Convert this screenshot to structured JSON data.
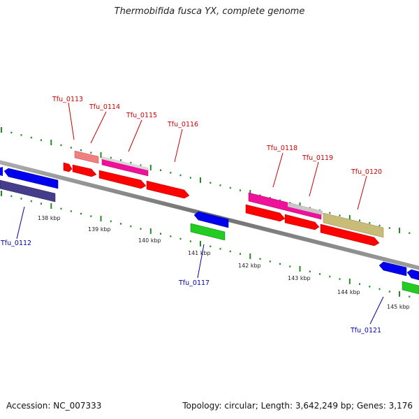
{
  "title": "Thermobifida fusca YX, complete genome",
  "footer": {
    "accession": "Accession: NC_007333",
    "summary": "Topology: circular; Length: 3,642,249 bp; Genes: 3,176"
  },
  "scale_labels": [
    "138 kbp",
    "139 kbp",
    "140 kbp",
    "141 kbp",
    "142 kbp",
    "143 kbp",
    "144 kbp",
    "145 kbp"
  ],
  "gene_labels": {
    "forward": [
      "Tfu_0113",
      "Tfu_0114",
      "Tfu_0115",
      "Tfu_0116",
      "Tfu_0118",
      "Tfu_0119",
      "Tfu_0120"
    ],
    "reverse": [
      "Tfu_0112",
      "Tfu_0117",
      "Tfu_0121"
    ]
  },
  "colors": {
    "backbone": "#8a8a8a",
    "ticks": "#228b22",
    "forward_label": "#cc0000",
    "reverse_label": "#0000aa",
    "red": "#ff0000",
    "blue": "#0000ee",
    "green": "#22cc22",
    "magenta": "#ee1199",
    "salmon": "#f08080",
    "silver": "#c8c8c8",
    "khaki": "#c8bc78",
    "navy": "#443d8b"
  }
}
